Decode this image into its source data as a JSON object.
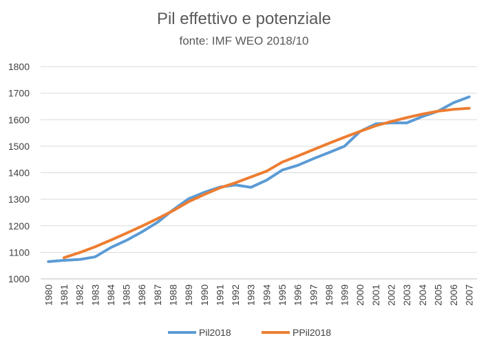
{
  "chart_data": {
    "type": "line",
    "title": "Pil effettivo e potenziale",
    "subtitle": "fonte: IMF WEO 2018/10",
    "xlabel": "",
    "ylabel": "",
    "ylim": [
      1000,
      1800
    ],
    "y_ticks": [
      1000,
      1100,
      1200,
      1300,
      1400,
      1500,
      1600,
      1700,
      1800
    ],
    "grid": true,
    "legend_position": "bottom",
    "categories": [
      "1980",
      "1981",
      "1982",
      "1983",
      "1984",
      "1985",
      "1986",
      "1987",
      "1988",
      "1989",
      "1990",
      "1991",
      "1992",
      "1993",
      "1994",
      "1995",
      "1996",
      "1997",
      "1998",
      "1999",
      "2000",
      "2001",
      "2002",
      "2003",
      "2004",
      "2005",
      "2006",
      "2007"
    ],
    "series": [
      {
        "name": "Pil2018",
        "color": "#5B9BD5",
        "values": [
          1065,
          1070,
          1073,
          1083,
          1118,
          1145,
          1177,
          1213,
          1260,
          1302,
          1326,
          1346,
          1354,
          1345,
          1372,
          1410,
          1428,
          1453,
          1476,
          1500,
          1556,
          1584,
          1588,
          1588,
          1612,
          1632,
          1664,
          1686
        ]
      },
      {
        "name": "PPil2018",
        "color": "#ED7D31",
        "values": [
          null,
          1080,
          1099,
          1121,
          1146,
          1172,
          1199,
          1227,
          1257,
          1291,
          1318,
          1343,
          1362,
          1384,
          1406,
          1440,
          1463,
          1487,
          1511,
          1534,
          1556,
          1577,
          1593,
          1608,
          1621,
          1632,
          1639,
          1643
        ]
      }
    ]
  }
}
